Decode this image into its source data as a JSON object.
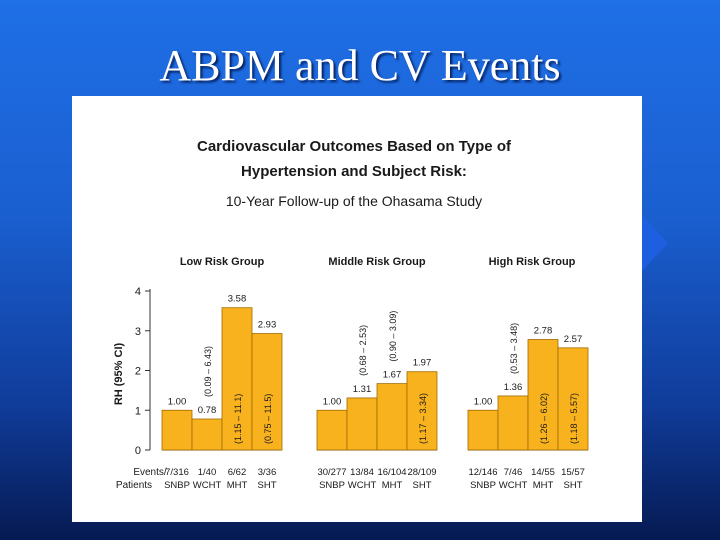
{
  "slide": {
    "title": "ABPM and CV Events"
  },
  "colors": {
    "bar_fill": "#f8b21e",
    "bar_stroke": "#a06a00",
    "text": "#1a1a1a",
    "axis": "#333333"
  },
  "chart_data": {
    "type": "bar",
    "title_line1": "Cardiovascular Outcomes Based on Type of",
    "title_line2": "Hypertension and Subject Risk:",
    "subtitle": "10-Year Follow-up of the Ohasama Study",
    "ylabel": "RH (95% CI)",
    "ylim": [
      0,
      4
    ],
    "yticks": [
      "0",
      "1",
      "2",
      "3",
      "4"
    ],
    "row_label_line1": "Events/",
    "row_label_line2": "Patients",
    "groups": [
      {
        "name": "Low Risk Group",
        "bars": [
          {
            "category": "SNBP",
            "value": 1.0,
            "value_label": "1.00",
            "ci_label": "",
            "events": "7/316"
          },
          {
            "category": "WCHT",
            "value": 0.78,
            "value_label": "0.78",
            "ci_label": "(0.09 – 6.43)",
            "events": "1/40"
          },
          {
            "category": "MHT",
            "value": 3.58,
            "value_label": "3.58",
            "ci_label": "(1.15 – 11.1)",
            "events": "6/62"
          },
          {
            "category": "SHT",
            "value": 2.93,
            "value_label": "2.93",
            "ci_label": "(0.75 – 11.5)",
            "events": "3/36"
          }
        ]
      },
      {
        "name": "Middle Risk Group",
        "bars": [
          {
            "category": "SNBP",
            "value": 1.0,
            "value_label": "1.00",
            "ci_label": "",
            "events": "30/277"
          },
          {
            "category": "WCHT",
            "value": 1.31,
            "value_label": "1.31",
            "ci_label": "(0.68 – 2.53)",
            "events": "13/84"
          },
          {
            "category": "MHT",
            "value": 1.67,
            "value_label": "1.67",
            "ci_label": "(0.90 – 3.09)",
            "events": "16/104"
          },
          {
            "category": "SHT",
            "value": 1.97,
            "value_label": "1.97",
            "ci_label": "(1.17 – 3.34)",
            "events": "28/109"
          }
        ]
      },
      {
        "name": "High Risk Group",
        "bars": [
          {
            "category": "SNBP",
            "value": 1.0,
            "value_label": "1.00",
            "ci_label": "",
            "events": "12/146"
          },
          {
            "category": "WCHT",
            "value": 1.36,
            "value_label": "1.36",
            "ci_label": "(0.53 – 3.48)",
            "events": "7/46"
          },
          {
            "category": "MHT",
            "value": 2.78,
            "value_label": "2.78",
            "ci_label": "(1.26 – 6.02)",
            "events": "14/55"
          },
          {
            "category": "SHT",
            "value": 2.57,
            "value_label": "2.57",
            "ci_label": "(1.18 – 5.57)",
            "events": "15/57"
          }
        ]
      }
    ]
  }
}
